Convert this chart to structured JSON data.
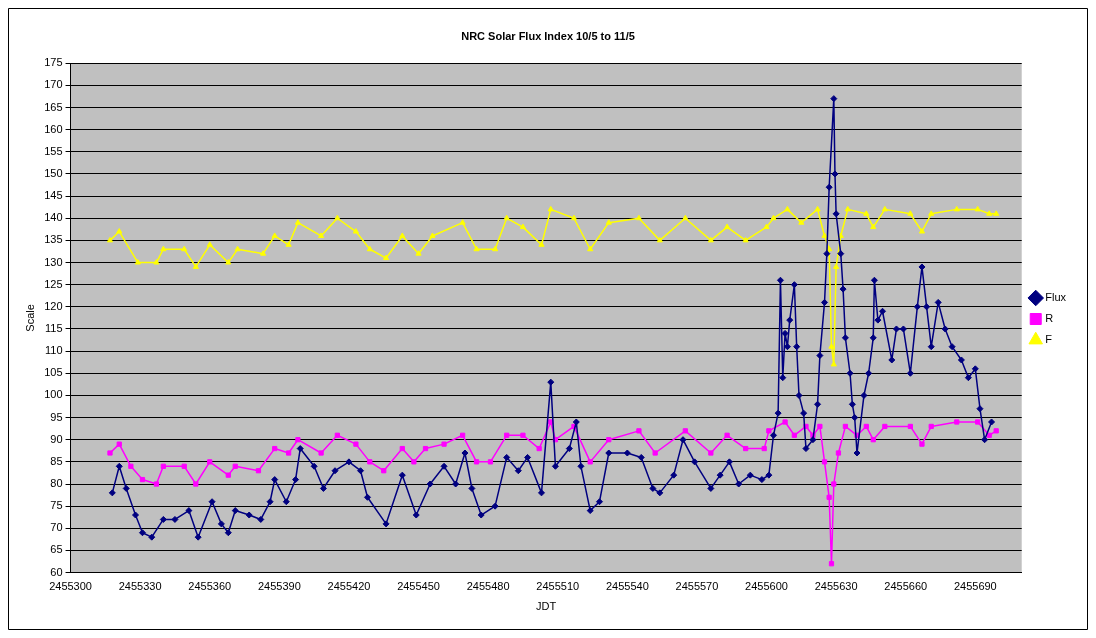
{
  "chart_data": {
    "type": "line",
    "title": "NRC Solar Flux Index 10/5 to 11/5",
    "xlabel": "JDT",
    "ylabel": "Scale",
    "xlim": [
      2455300,
      2455710
    ],
    "xticks": [
      2455300,
      2455330,
      2455360,
      2455390,
      2455420,
      2455450,
      2455480,
      2455510,
      2455540,
      2455570,
      2455600,
      2455630,
      2455660,
      2455690
    ],
    "ylim": [
      60,
      175
    ],
    "yticks": [
      60,
      65,
      70,
      75,
      80,
      85,
      90,
      95,
      100,
      105,
      110,
      115,
      120,
      125,
      130,
      135,
      140,
      145,
      150,
      155,
      160,
      165,
      170,
      175
    ],
    "grid": "y",
    "legend": "right",
    "line_style": "solid",
    "series": [
      {
        "name": "Flux",
        "color": "#000080",
        "marker": "diamond",
        "x": [
          2455318,
          2455321,
          2455324,
          2455328,
          2455331,
          2455335,
          2455340,
          2455345,
          2455351,
          2455355,
          2455361,
          2455365,
          2455368,
          2455371,
          2455377,
          2455382,
          2455386,
          2455388,
          2455393,
          2455397,
          2455399,
          2455405,
          2455409,
          2455414,
          2455420,
          2455425,
          2455428,
          2455436,
          2455443,
          2455449,
          2455455,
          2455461,
          2455466,
          2455470,
          2455473,
          2455477,
          2455483,
          2455488,
          2455493,
          2455497,
          2455503,
          2455507,
          2455509,
          2455515,
          2455518,
          2455520,
          2455524,
          2455528,
          2455532,
          2455540,
          2455546,
          2455551,
          2455554,
          2455560,
          2455564,
          2455569,
          2455576,
          2455580,
          2455584,
          2455588,
          2455593,
          2455598,
          2455601,
          2455603,
          2455605,
          2455606,
          2455607,
          2455608,
          2455609,
          2455610,
          2455612,
          2455613,
          2455614,
          2455616,
          2455617,
          2455620,
          2455622,
          2455623,
          2455625,
          2455626,
          2455627,
          2455629,
          2455629.5,
          2455630,
          2455632,
          2455633,
          2455634,
          2455636,
          2455637,
          2455638,
          2455639,
          2455642,
          2455644,
          2455646,
          2455646.5,
          2455648,
          2455650,
          2455654,
          2455656,
          2455659,
          2455662,
          2455665,
          2455667,
          2455669,
          2455671,
          2455674,
          2455677,
          2455680,
          2455684,
          2455687,
          2455690,
          2455692,
          2455694,
          2455697
        ],
        "values": [
          78,
          84,
          79,
          73,
          69,
          68,
          72,
          72,
          74,
          68,
          76,
          71,
          69,
          74,
          73,
          72,
          76,
          81,
          76,
          81,
          88,
          84,
          79,
          83,
          85,
          83,
          77,
          71,
          82,
          73,
          80,
          84,
          80,
          87,
          79,
          73,
          75,
          86,
          83,
          86,
          78,
          103,
          84,
          88,
          94,
          84,
          74,
          76,
          87,
          87,
          86,
          79,
          78,
          82,
          90,
          85,
          79,
          82,
          85,
          80,
          82,
          81,
          82,
          91,
          96,
          126,
          104,
          114,
          111,
          117,
          125,
          111,
          100,
          96,
          88,
          90,
          98,
          109,
          121,
          132,
          147,
          167,
          150,
          141,
          132,
          124,
          113,
          105,
          98,
          95,
          87,
          100,
          105,
          113,
          126,
          117,
          119,
          108,
          115,
          115,
          105,
          120,
          129,
          120,
          111,
          121,
          115,
          111,
          108,
          104,
          106,
          97,
          90,
          94
        ]
      },
      {
        "name": "R",
        "color": "#ff00ff",
        "marker": "square",
        "x": [
          2455317,
          2455321,
          2455326,
          2455331,
          2455337,
          2455340,
          2455349,
          2455354,
          2455360,
          2455368,
          2455371,
          2455381,
          2455388,
          2455394,
          2455398,
          2455408,
          2455415,
          2455423,
          2455429,
          2455435,
          2455443,
          2455448,
          2455453,
          2455461,
          2455469,
          2455475,
          2455481,
          2455488,
          2455495,
          2455502,
          2455507,
          2455509,
          2455517,
          2455524,
          2455532,
          2455545,
          2455552,
          2455565,
          2455576,
          2455583,
          2455591,
          2455599,
          2455601,
          2455608,
          2455612,
          2455617,
          2455620,
          2455623,
          2455625,
          2455627,
          2455628,
          2455629,
          2455631,
          2455634,
          2455639,
          2455643,
          2455646,
          2455651,
          2455662,
          2455667,
          2455671,
          2455682,
          2455691,
          2455696,
          2455699
        ],
        "values": [
          87,
          89,
          84,
          81,
          80,
          84,
          84,
          80,
          85,
          82,
          84,
          83,
          88,
          87,
          90,
          87,
          91,
          89,
          85,
          83,
          88,
          85,
          88,
          89,
          91,
          85,
          85,
          91,
          91,
          88,
          94,
          90,
          93,
          85,
          90,
          92,
          87,
          92,
          87,
          91,
          88,
          88,
          92,
          94,
          91,
          93,
          91,
          93,
          85,
          77,
          62,
          80,
          87,
          93,
          91,
          93,
          90,
          93,
          93,
          89,
          93,
          94,
          94,
          91,
          92
        ]
      },
      {
        "name": "F",
        "color": "#ffff00",
        "marker": "triangle",
        "x": [
          2455317,
          2455321,
          2455329,
          2455337,
          2455340,
          2455349,
          2455354,
          2455360,
          2455368,
          2455372,
          2455383,
          2455388,
          2455394,
          2455398,
          2455408,
          2455415,
          2455423,
          2455429,
          2455436,
          2455443,
          2455450,
          2455456,
          2455469,
          2455475,
          2455483,
          2455488,
          2455495,
          2455503,
          2455507,
          2455517,
          2455524,
          2455532,
          2455545,
          2455554,
          2455565,
          2455576,
          2455583,
          2455591,
          2455600,
          2455603,
          2455609,
          2455615,
          2455622,
          2455625,
          2455627,
          2455628,
          2455629,
          2455630,
          2455632,
          2455635,
          2455643,
          2455646,
          2455651,
          2455662,
          2455667,
          2455671,
          2455682,
          2455691,
          2455696,
          2455699
        ],
        "values": [
          135,
          137,
          130,
          130,
          133,
          133,
          129,
          134,
          130,
          133,
          132,
          136,
          134,
          139,
          136,
          140,
          137,
          133,
          131,
          136,
          132,
          136,
          139,
          133,
          133,
          140,
          138,
          134,
          142,
          140,
          133,
          139,
          140,
          135,
          140,
          135,
          138,
          135,
          138,
          140,
          142,
          139,
          142,
          136,
          133,
          111,
          107,
          129,
          136,
          142,
          141,
          138,
          142,
          141,
          137,
          141,
          142,
          142,
          141,
          141
        ]
      }
    ]
  }
}
